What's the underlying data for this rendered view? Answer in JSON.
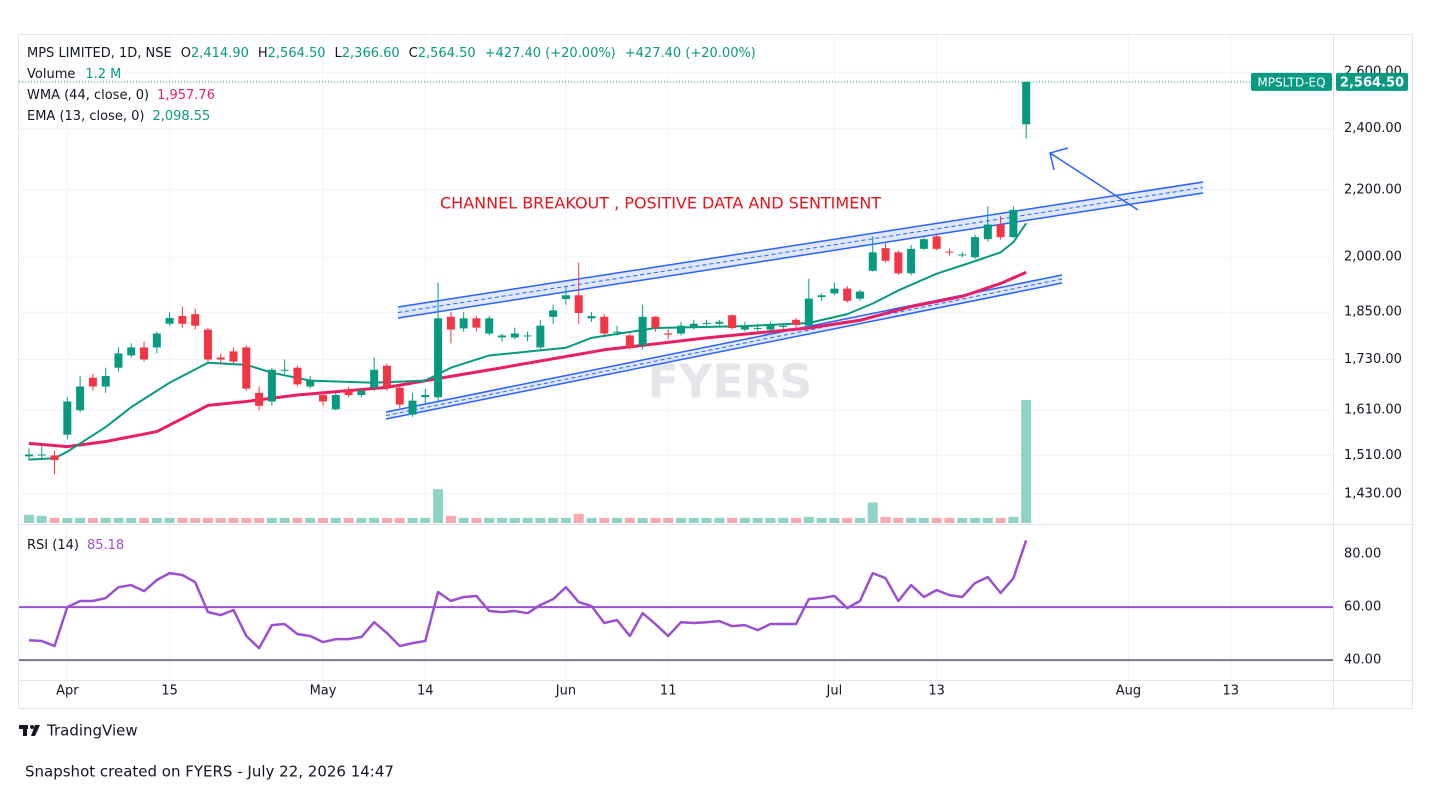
{
  "chart_data": {
    "type": "candlestick",
    "header": {
      "symbol": "MPS LIMITED, 1D, NSE",
      "ohlc": [
        {
          "key": "O",
          "value": "2,414.90"
        },
        {
          "key": "H",
          "value": "2,564.50"
        },
        {
          "key": "L",
          "value": "2,366.60"
        },
        {
          "key": "C",
          "value": "2,564.50"
        }
      ],
      "change": [
        "+427.40 (+20.00%)",
        "+427.40 (+20.00%)"
      ]
    },
    "candles": {
      "up_color": "#089981",
      "down_color": "#f23645",
      "open": [
        1508,
        1510,
        1510,
        1555,
        1610,
        1686,
        1665,
        1710,
        1740,
        1760,
        1760,
        1820,
        1840,
        1845,
        1805,
        1735,
        1750,
        1760,
        1650,
        1630,
        1705,
        1710,
        1665,
        1645,
        1612,
        1655,
        1645,
        1662,
        1715,
        1662,
        1600,
        1640,
        1640,
        1838,
        1808,
        1834,
        1795,
        1785,
        1785,
        1790,
        1760,
        1838,
        1885,
        1895,
        1834,
        1838,
        1800,
        1790,
        1765,
        1838,
        1795,
        1795,
        1809,
        1820,
        1820,
        1842,
        1805,
        1809,
        1805,
        1812,
        1830,
        1815,
        1890,
        1900,
        1913,
        1886,
        1962,
        2026,
        2014,
        1955,
        2024,
        2060,
        2016,
        2005,
        2000,
        2052,
        2095,
        2058,
        2414.9
      ],
      "high": [
        1525,
        1530,
        1520,
        1640,
        1690,
        1695,
        1710,
        1760,
        1770,
        1775,
        1800,
        1850,
        1865,
        1860,
        1810,
        1745,
        1760,
        1765,
        1665,
        1710,
        1730,
        1715,
        1690,
        1655,
        1650,
        1665,
        1660,
        1735,
        1720,
        1670,
        1650,
        1660,
        1930,
        1850,
        1850,
        1840,
        1840,
        1795,
        1810,
        1800,
        1830,
        1870,
        1920,
        1985,
        1850,
        1845,
        1815,
        1795,
        1870,
        1840,
        1805,
        1825,
        1830,
        1830,
        1830,
        1845,
        1825,
        1820,
        1825,
        1820,
        1835,
        1940,
        1900,
        1930,
        1920,
        1910,
        2060,
        2040,
        2020,
        2035,
        2060,
        2065,
        2025,
        2015,
        2065,
        2150,
        2120,
        2150,
        2564.5
      ],
      "low": [
        1500,
        1500,
        1470,
        1545,
        1605,
        1655,
        1650,
        1700,
        1735,
        1725,
        1745,
        1815,
        1810,
        1805,
        1725,
        1720,
        1720,
        1655,
        1610,
        1620,
        1695,
        1665,
        1660,
        1620,
        1610,
        1640,
        1640,
        1655,
        1655,
        1615,
        1595,
        1625,
        1630,
        1770,
        1800,
        1800,
        1790,
        1775,
        1780,
        1775,
        1755,
        1820,
        1870,
        1820,
        1825,
        1790,
        1790,
        1755,
        1755,
        1800,
        1780,
        1790,
        1805,
        1815,
        1815,
        1805,
        1800,
        1800,
        1800,
        1805,
        1810,
        1810,
        1880,
        1895,
        1875,
        1880,
        1960,
        1985,
        1950,
        1950,
        2020,
        2020,
        2005,
        2000,
        1995,
        2045,
        2050,
        2055,
        2366.6
      ],
      "close": [
        1512,
        1512,
        1500,
        1630,
        1665,
        1665,
        1690,
        1745,
        1760,
        1730,
        1795,
        1835,
        1820,
        1815,
        1730,
        1730,
        1725,
        1660,
        1620,
        1705,
        1705,
        1670,
        1680,
        1630,
        1645,
        1645,
        1655,
        1705,
        1662,
        1623,
        1632,
        1645,
        1834,
        1805,
        1834,
        1810,
        1834,
        1790,
        1795,
        1790,
        1815,
        1855,
        1895,
        1848,
        1840,
        1795,
        1800,
        1760,
        1838,
        1810,
        1792,
        1815,
        1820,
        1822,
        1825,
        1809,
        1815,
        1809,
        1818,
        1815,
        1817,
        1886,
        1895,
        1913,
        1880,
        1905,
        2014,
        1990,
        1955,
        2024,
        2052,
        2024,
        2014,
        2008,
        2058,
        2095,
        2058,
        2139,
        2564.5
      ]
    },
    "log_scale": true,
    "ylim": [
      1372,
      2741
    ],
    "yticks": [
      {
        "value": 1430,
        "label": "1,430.00"
      },
      {
        "value": 1510,
        "label": "1,510.00"
      },
      {
        "value": 1610,
        "label": "1,610.00"
      },
      {
        "value": 1730,
        "label": "1,730.00"
      },
      {
        "value": 1850,
        "label": "1,850.00"
      },
      {
        "value": 2000,
        "label": "2,000.00"
      },
      {
        "value": 2200,
        "label": "2,200.00"
      },
      {
        "value": 2400,
        "label": "2,400.00"
      },
      {
        "value": 2600,
        "label": "2,600.00"
      }
    ],
    "xlim": [
      -0.78,
      102
    ],
    "xticks": [
      {
        "value": 3,
        "label": "Apr"
      },
      {
        "value": 11,
        "label": "15"
      },
      {
        "value": 23,
        "label": "May"
      },
      {
        "value": 31,
        "label": "14"
      },
      {
        "value": 42,
        "label": "Jun"
      },
      {
        "value": 50,
        "label": "11"
      },
      {
        "value": 63,
        "label": "Jul"
      },
      {
        "value": 71,
        "label": "13"
      },
      {
        "value": 86,
        "label": "Aug"
      },
      {
        "value": 94,
        "label": "13"
      }
    ],
    "grid": true,
    "overlays": [
      {
        "name": "WMA (44, close, 0)",
        "color": "#e91e63",
        "value_label": "1,957.76",
        "x": [
          0,
          3,
          6,
          10,
          14,
          17,
          21,
          28,
          32,
          37,
          45,
          53,
          61,
          65,
          69,
          73,
          76,
          78
        ],
        "values": [
          1536,
          1529,
          1540,
          1562,
          1621,
          1630,
          1645,
          1663,
          1684,
          1710,
          1754,
          1784,
          1809,
          1829,
          1865,
          1892,
          1927,
          1957.76
        ]
      },
      {
        "name": "EMA (13, close, 0)",
        "color": "#089981",
        "value_label": "2,098.55",
        "x": [
          0,
          2,
          3,
          6,
          8,
          11,
          14,
          17,
          19,
          22,
          27,
          31,
          33,
          36,
          42,
          44,
          49,
          56,
          61,
          64,
          66,
          68,
          71,
          74,
          76,
          77,
          78
        ],
        "values": [
          1501,
          1504,
          1518,
          1572,
          1617,
          1674,
          1722,
          1717,
          1698,
          1679,
          1674,
          1679,
          1710,
          1740,
          1759,
          1784,
          1809,
          1814,
          1822,
          1845,
          1873,
          1908,
          1954,
          1989,
          2014,
          2043,
          2098.55
        ]
      }
    ],
    "volume": {
      "name": "Volume",
      "value_label": "1.2 M",
      "up_color": "#8fd3c6",
      "down_color": "#f7a9ae",
      "values": [
        0.08,
        0.07,
        0.05,
        0.05,
        0.05,
        0.05,
        0.05,
        0.05,
        0.05,
        0.05,
        0.05,
        0.05,
        0.05,
        0.05,
        0.05,
        0.05,
        0.05,
        0.05,
        0.05,
        0.05,
        0.05,
        0.05,
        0.05,
        0.05,
        0.05,
        0.05,
        0.05,
        0.05,
        0.05,
        0.05,
        0.05,
        0.05,
        0.33,
        0.07,
        0.05,
        0.05,
        0.05,
        0.05,
        0.05,
        0.05,
        0.05,
        0.05,
        0.05,
        0.09,
        0.05,
        0.05,
        0.05,
        0.05,
        0.05,
        0.05,
        0.05,
        0.05,
        0.05,
        0.05,
        0.05,
        0.05,
        0.05,
        0.05,
        0.05,
        0.05,
        0.05,
        0.06,
        0.05,
        0.05,
        0.05,
        0.05,
        0.2,
        0.06,
        0.05,
        0.05,
        0.05,
        0.05,
        0.05,
        0.05,
        0.05,
        0.05,
        0.05,
        0.06,
        1.2
      ]
    },
    "rsi": {
      "name": "RSI (14)",
      "value_label": "85.18",
      "color": "#9c4fd0",
      "values": [
        47.5,
        47.2,
        45.3,
        60.0,
        62.3,
        62.3,
        63.4,
        67.5,
        68.3,
        66.0,
        70.2,
        72.8,
        72.1,
        69.4,
        58.1,
        57.0,
        58.9,
        49.1,
        44.5,
        53.2,
        53.6,
        49.8,
        49.1,
        46.8,
        47.9,
        47.9,
        48.7,
        54.3,
        50.2,
        45.3,
        46.4,
        47.2,
        65.7,
        62.3,
        63.8,
        64.2,
        58.5,
        58.1,
        58.5,
        57.7,
        60.8,
        63.0,
        67.5,
        61.9,
        60.4,
        54.0,
        55.1,
        49.1,
        57.7,
        53.6,
        49.1,
        54.3,
        54.0,
        54.3,
        54.7,
        52.8,
        53.2,
        51.3,
        53.6,
        53.6,
        53.6,
        63.0,
        63.4,
        64.2,
        59.6,
        62.3,
        72.8,
        70.9,
        62.3,
        68.3,
        63.8,
        66.4,
        64.5,
        63.8,
        69.1,
        71.3,
        65.3,
        70.9,
        85.18
      ],
      "ylim": [
        32.5,
        90.2
      ],
      "yticks": [
        {
          "value": 40,
          "label": "40.00"
        },
        {
          "value": 60,
          "label": "60.00"
        },
        {
          "value": 80,
          "label": "80.00"
        }
      ],
      "levels": [
        {
          "value": 60,
          "color": "#9c4fd0"
        },
        {
          "value": 40,
          "color": "#787b86"
        }
      ]
    },
    "annotation": "CHANNEL BREAKOUT  , POSITIVE DATA AND SENTIMENT",
    "price_tag": {
      "symbol": "MPSLTD-EQ",
      "price": "2,564.50"
    },
    "watermark": "FYERS"
  },
  "footer": {
    "brand": "TradingView",
    "snapshot": "Snapshot created on FYERS - July 22, 2026 14:47"
  }
}
